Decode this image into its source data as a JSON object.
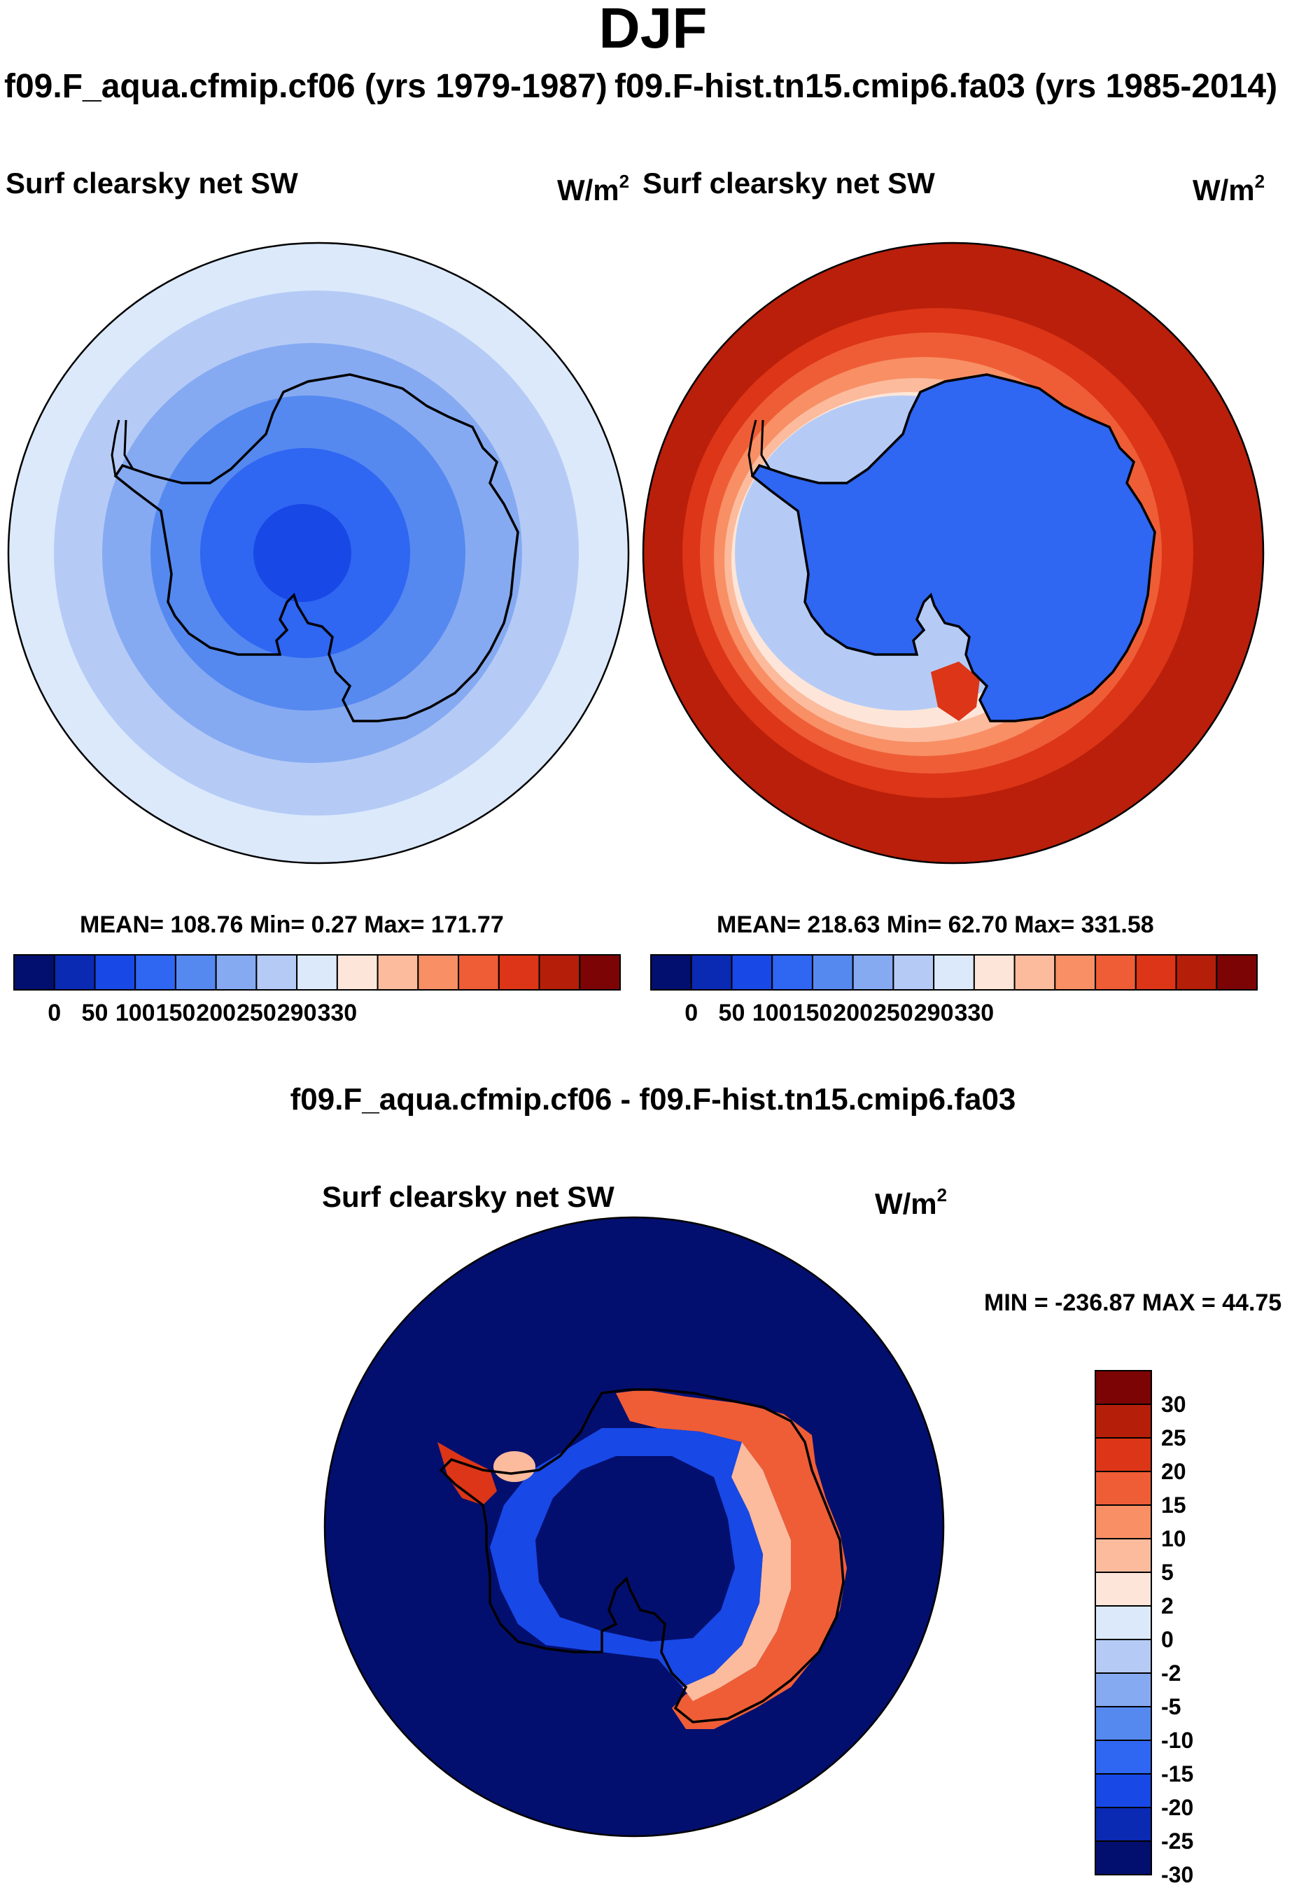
{
  "title": "DJF",
  "panels": {
    "left": {
      "case_label": "f09.F_aqua.cfmip.cf06 (yrs 1979-1987)",
      "variable": "Surf clearsky net SW",
      "units": "W/m",
      "units_sup": "2",
      "stats": "MEAN= 108.76  Min=   0.27  Max= 171.77"
    },
    "right": {
      "case_label": "f09.F-hist.tn15.cmip6.fa03 (yrs 1985-2014)",
      "variable": "Surf clearsky net SW",
      "units": "W/m",
      "units_sup": "2",
      "stats": "MEAN= 218.63  Min=  62.70  Max= 331.58"
    },
    "diff": {
      "title": "f09.F_aqua.cfmip.cf06 - f09.F-hist.tn15.cmip6.fa03",
      "variable": "Surf clearsky net SW",
      "units": "W/m",
      "units_sup": "2",
      "stats": "MIN = -236.87 MAX =  44.75"
    }
  },
  "chart_data": [
    {
      "type": "heatmap",
      "projection": "south-polar-stereographic",
      "title": "Surf clearsky net SW",
      "case": "f09.F_aqua.cfmip.cf06 (yrs 1979-1987)",
      "units": "W/m^2",
      "mean": 108.76,
      "min": 0.27,
      "max": 171.77,
      "colorbar_ticks": [
        "0",
        "50",
        "100",
        "150",
        "200",
        "250",
        "290",
        "330"
      ],
      "colorbar_colors": [
        "#030f6e",
        "#0a2ab4",
        "#1848e6",
        "#2f66f2",
        "#5589f0",
        "#86aaf1",
        "#b5cbf6",
        "#dbe9fb",
        "#fde6d9",
        "#fcbb9d",
        "#f88f65",
        "#ef5d36",
        "#dc3517",
        "#b51f0a",
        "#7c0404"
      ],
      "description_fields": "rings by latitude"
    },
    {
      "type": "heatmap",
      "projection": "south-polar-stereographic",
      "title": "Surf clearsky net SW",
      "case": "f09.F-hist.tn15.cmip6.fa03 (yrs 1985-2014)",
      "units": "W/m^2",
      "mean": 218.63,
      "min": 62.7,
      "max": 331.58,
      "colorbar_ticks": [
        "0",
        "50",
        "100",
        "150",
        "200",
        "250",
        "290",
        "330"
      ],
      "colorbar_colors": [
        "#030f6e",
        "#0a2ab4",
        "#1848e6",
        "#2f66f2",
        "#5589f0",
        "#86aaf1",
        "#b5cbf6",
        "#dbe9fb",
        "#fde6d9",
        "#fcbb9d",
        "#f88f65",
        "#ef5d36",
        "#dc3517",
        "#b51f0a",
        "#7c0404"
      ]
    },
    {
      "type": "heatmap",
      "projection": "south-polar-stereographic",
      "title": "Surf clearsky net SW",
      "case": "f09.F_aqua.cfmip.cf06 - f09.F-hist.tn15.cmip6.fa03",
      "units": "W/m^2",
      "min": -236.87,
      "max": 44.75,
      "colorbar_ticks": [
        "30",
        "25",
        "20",
        "15",
        "10",
        "5",
        "2",
        "0",
        "-2",
        "-5",
        "-10",
        "-15",
        "-20",
        "-25",
        "-30"
      ],
      "colorbar_colors": [
        "#7c0404",
        "#b51f0a",
        "#dc3517",
        "#ef5d36",
        "#f88f65",
        "#fcbb9d",
        "#fde6d9",
        "#dbe9fb",
        "#b5cbf6",
        "#86aaf1",
        "#5589f0",
        "#2f66f2",
        "#1848e6",
        "#0a2ab4",
        "#030f6e"
      ]
    }
  ]
}
